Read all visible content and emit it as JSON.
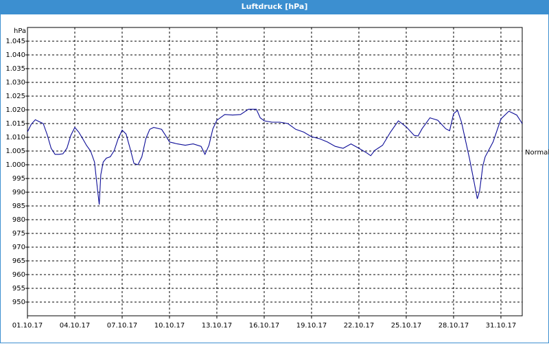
{
  "chart_data": {
    "type": "line",
    "title": "Luftdruck [hPa]",
    "y_label": "hPa",
    "annotation": {
      "text": "Normal",
      "value": 1005
    },
    "grid": true,
    "xlim": [
      0,
      31.35
    ],
    "xticks": [
      {
        "value": 0,
        "label": "01.10.17"
      },
      {
        "value": 3,
        "label": "04.10.17"
      },
      {
        "value": 6,
        "label": "07.10.17"
      },
      {
        "value": 9,
        "label": "10.10.17"
      },
      {
        "value": 12,
        "label": "13.10.17"
      },
      {
        "value": 15,
        "label": "16.10.17"
      },
      {
        "value": 18,
        "label": "19.10.17"
      },
      {
        "value": 21,
        "label": "22.10.17"
      },
      {
        "value": 24,
        "label": "25.10.17"
      },
      {
        "value": 27,
        "label": "28.10.17"
      },
      {
        "value": 30,
        "label": "31.10.17"
      }
    ],
    "ylim": [
      945,
      1050
    ],
    "yticks": [
      950,
      955,
      960,
      965,
      970,
      975,
      980,
      985,
      990,
      995,
      {
        "value": 1000,
        "label": "1.000"
      },
      {
        "value": 1005,
        "label": "1.005"
      },
      {
        "value": 1010,
        "label": "1.010"
      },
      {
        "value": 1015,
        "label": "1.015"
      },
      {
        "value": 1020,
        "label": "1.020"
      },
      {
        "value": 1025,
        "label": "1.025"
      },
      {
        "value": 1030,
        "label": "1.030"
      },
      {
        "value": 1035,
        "label": "1.035"
      },
      {
        "value": 1040,
        "label": "1.040"
      },
      {
        "value": 1045,
        "label": "1.045"
      }
    ],
    "series": [
      {
        "color": "#0a0a96",
        "x": [
          0,
          0.25,
          0.5,
          0.75,
          1,
          1.25,
          1.5,
          1.75,
          2,
          2.25,
          2.5,
          2.75,
          3,
          3.25,
          3.5,
          3.75,
          4,
          4.25,
          4.4,
          4.55,
          4.65,
          4.8,
          5,
          5.25,
          5.5,
          5.75,
          6,
          6.25,
          6.5,
          6.75,
          7,
          7.25,
          7.5,
          7.75,
          8,
          8.5,
          8.75,
          9,
          9.5,
          10,
          10.5,
          11,
          11.25,
          11.5,
          11.75,
          12,
          12.5,
          13,
          13.5,
          14,
          14.5,
          14.75,
          15,
          15.5,
          16,
          16.5,
          17,
          17.5,
          18,
          18.5,
          19,
          19.5,
          20,
          20.5,
          21,
          21.5,
          21.75,
          22,
          22.5,
          23,
          23.5,
          24,
          24.5,
          24.75,
          25,
          25.5,
          26,
          26.5,
          26.75,
          27,
          27.25,
          27.5,
          28,
          28.25,
          28.5,
          28.65,
          28.85,
          29,
          29.5,
          30,
          30.5,
          31,
          31.35
        ],
        "values": [
          1012,
          1014.8,
          1016.4,
          1015.7,
          1015,
          1011,
          1006,
          1003.8,
          1003.8,
          1004,
          1006,
          1010.7,
          1013.6,
          1011.9,
          1009.5,
          1007,
          1005,
          1001,
          993,
          985.5,
          996.4,
          1001,
          1002.4,
          1002.9,
          1005.2,
          1009.5,
          1012.6,
          1011.2,
          1006,
          1000.5,
          1000,
          1002.9,
          1009.5,
          1012.9,
          1013.6,
          1012.9,
          1010.7,
          1008.3,
          1007.6,
          1007.1,
          1007.6,
          1006.7,
          1003.8,
          1007.1,
          1013.1,
          1016.2,
          1018.3,
          1018.1,
          1018.3,
          1020.2,
          1020.2,
          1017.1,
          1016,
          1015.5,
          1015.5,
          1015,
          1012.9,
          1011.9,
          1010.2,
          1009.5,
          1008.3,
          1006.7,
          1006,
          1007.6,
          1006,
          1004.3,
          1003.3,
          1005.2,
          1007.1,
          1011.9,
          1016,
          1013.8,
          1010.7,
          1010.5,
          1013.1,
          1017.1,
          1016.2,
          1013.1,
          1012.4,
          1018.6,
          1019.8,
          1015.5,
          1002.4,
          995.2,
          987.6,
          990.5,
          999.5,
          1002.9,
          1008.3,
          1016.7,
          1019.5,
          1018.1,
          1015
        ]
      }
    ]
  }
}
